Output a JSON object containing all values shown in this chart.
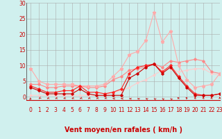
{
  "xlabel": "Vent moyen/en rafales ( km/h )",
  "xlim": [
    -0.5,
    23
  ],
  "ylim": [
    -1,
    30
  ],
  "yticks": [
    0,
    5,
    10,
    15,
    20,
    25,
    30
  ],
  "xticks": [
    0,
    1,
    2,
    3,
    4,
    5,
    6,
    7,
    8,
    9,
    10,
    11,
    12,
    13,
    14,
    15,
    16,
    17,
    18,
    19,
    20,
    21,
    22,
    23
  ],
  "background_color": "#d0f0ee",
  "grid_color": "#aaaaaa",
  "x": [
    0,
    1,
    2,
    3,
    4,
    5,
    6,
    7,
    8,
    9,
    10,
    11,
    12,
    13,
    14,
    15,
    16,
    17,
    18,
    19,
    20,
    21,
    22,
    23
  ],
  "line1_y": [
    3.0,
    2.0,
    1.0,
    1.0,
    1.0,
    1.0,
    2.5,
    1.0,
    0.5,
    0.5,
    0.5,
    0.5,
    6.0,
    7.5,
    9.5,
    10.5,
    7.5,
    9.5,
    6.0,
    3.0,
    0.5,
    0.5,
    0.5,
    1.0
  ],
  "line1_color": "#cc0000",
  "line1_marker": "D",
  "line1_ms": 1.8,
  "line1_lw": 0.8,
  "line2_y": [
    3.5,
    2.5,
    1.5,
    1.5,
    2.0,
    2.0,
    3.5,
    1.5,
    1.5,
    1.0,
    1.5,
    2.5,
    7.5,
    9.5,
    10.0,
    10.5,
    8.0,
    10.0,
    6.5,
    3.5,
    1.0,
    0.5,
    0.5,
    1.0
  ],
  "line2_color": "#ff2222",
  "line2_marker": "D",
  "line2_ms": 1.8,
  "line2_lw": 0.8,
  "line3_y": [
    4.0,
    4.0,
    3.0,
    3.0,
    3.5,
    3.5,
    3.5,
    3.0,
    3.0,
    3.5,
    5.5,
    6.5,
    8.5,
    9.0,
    9.5,
    10.5,
    9.5,
    11.5,
    11.0,
    11.5,
    12.0,
    11.5,
    8.0,
    7.5
  ],
  "line3_color": "#ff8888",
  "line3_marker": "D",
  "line3_ms": 1.8,
  "line3_lw": 0.8,
  "line4_y": [
    9.0,
    5.0,
    4.0,
    4.0,
    4.0,
    4.0,
    3.5,
    3.5,
    3.5,
    4.0,
    6.5,
    9.0,
    13.5,
    14.5,
    18.0,
    27.0,
    17.5,
    21.0,
    10.0,
    5.5,
    3.0,
    3.5,
    4.0,
    7.5
  ],
  "line4_color": "#ffaaaa",
  "line4_marker": "*",
  "line4_ms": 3.5,
  "line4_lw": 0.8,
  "line5_y": [
    0.5,
    0.5,
    0.5,
    0.5,
    0.5,
    0.5,
    0.5,
    0.5,
    0.5,
    0.5,
    1.5,
    2.0,
    3.0,
    4.5,
    5.5,
    7.0,
    8.5,
    9.0,
    8.0,
    8.5,
    9.0,
    9.0,
    7.5,
    7.0
  ],
  "line5_color": "#ffcccc",
  "line5_marker": "D",
  "line5_ms": 1.5,
  "line5_lw": 0.8,
  "xlabel_fontsize": 7,
  "tick_fontsize": 5.5,
  "label_color": "#cc0000",
  "arrow_angles": [
    225,
    210,
    195,
    195,
    195,
    195,
    195,
    195,
    195,
    195,
    180,
    180,
    170,
    165,
    160,
    155,
    150,
    145,
    135,
    130,
    90,
    90,
    90,
    90
  ]
}
